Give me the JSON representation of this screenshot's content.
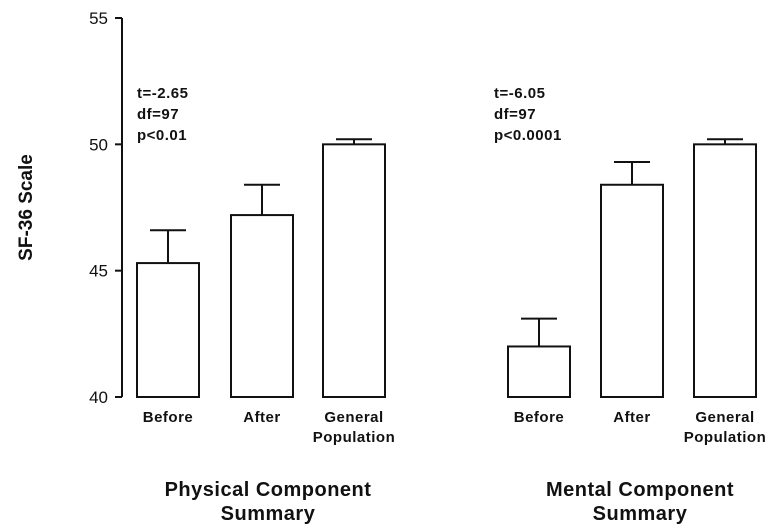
{
  "chart_data": {
    "type": "bar",
    "ylabel": "SF-36 Scale",
    "ylim": [
      40,
      55
    ],
    "yticks": [
      "40",
      "45",
      "50",
      "55"
    ],
    "error_bars": "upper only",
    "grid": false,
    "groups": [
      {
        "title": [
          "Physical Component",
          "Summary"
        ],
        "stats": [
          "t=-2.65",
          "df=97",
          "p<0.01"
        ],
        "bars": [
          {
            "label": [
              "Before"
            ],
            "value": 45.3,
            "error_upper": 46.6
          },
          {
            "label": [
              "After"
            ],
            "value": 47.2,
            "error_upper": 48.4
          },
          {
            "label": [
              "General",
              "Population"
            ],
            "value": 50.0,
            "error_upper": 50.2
          }
        ]
      },
      {
        "title": [
          "Mental Component",
          "Summary"
        ],
        "stats": [
          "t=-6.05",
          "df=97",
          "p<0.0001"
        ],
        "bars": [
          {
            "label": [
              "Before"
            ],
            "value": 42.0,
            "error_upper": 43.1
          },
          {
            "label": [
              "After"
            ],
            "value": 48.4,
            "error_upper": 49.3
          },
          {
            "label": [
              "General",
              "Population"
            ],
            "value": 50.0,
            "error_upper": 50.2
          }
        ]
      }
    ]
  }
}
